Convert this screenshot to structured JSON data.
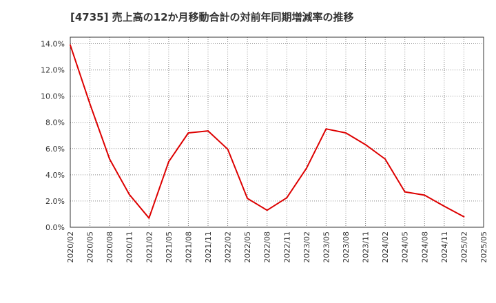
{
  "chart_data": {
    "type": "line",
    "title": "[4735]  売上高の12か月移動合計の対前年同期増減率の推移",
    "xlabel": "",
    "ylabel": "",
    "x": [
      "2020/02",
      "2020/05",
      "2020/08",
      "2020/11",
      "2021/02",
      "2021/05",
      "2021/08",
      "2021/11",
      "2022/02",
      "2022/05",
      "2022/08",
      "2022/11",
      "2023/02",
      "2023/05",
      "2023/08",
      "2023/11",
      "2024/02",
      "2024/05",
      "2024/08",
      "2024/11",
      "2025/02",
      "2025/05"
    ],
    "series": [
      {
        "name": "売上高の12か月移動合計の対前年同期増減率",
        "color": "#dd0000",
        "values": [
          13.9,
          9.4,
          5.2,
          2.5,
          0.7,
          5.0,
          7.2,
          7.35,
          5.95,
          2.2,
          1.3,
          2.25,
          4.5,
          7.5,
          7.2,
          6.3,
          5.2,
          2.7,
          2.45,
          1.6,
          0.8,
          null
        ]
      }
    ],
    "yticks": [
      "0.0%",
      "2.0%",
      "4.0%",
      "6.0%",
      "8.0%",
      "10.0%",
      "12.0%",
      "14.0%"
    ],
    "ylim": [
      0,
      14.5
    ],
    "grid": true
  }
}
